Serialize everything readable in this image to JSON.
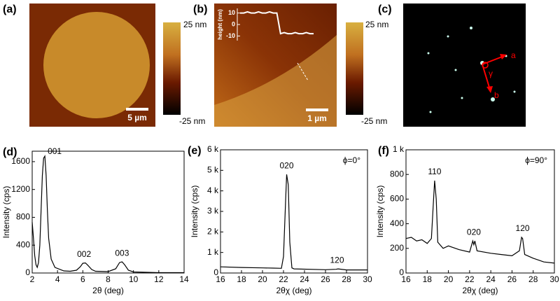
{
  "images": [
    {
      "label": "(a)",
      "scale_bar": "5 µm",
      "colorbar_max": "25 nm",
      "colorbar_min": "-25 nm"
    },
    {
      "label": "(b)",
      "scale_bar": "1 µm",
      "colorbar_max": "25 nm",
      "colorbar_min": "-25 nm"
    },
    {
      "label": "(c)",
      "axis_a": "a",
      "axis_b": "b",
      "angle": "γ"
    }
  ],
  "chart_data": [
    {
      "type": "line",
      "label": "(d)",
      "xlabel": "2θ (deg)",
      "ylabel": "Intensity (cps)",
      "color": "#000",
      "xlim": [
        2,
        14
      ],
      "xticks": [
        2,
        4,
        6,
        8,
        10,
        12,
        14
      ],
      "ylim": [
        0,
        1750
      ],
      "yticks": [
        0,
        400,
        800,
        1200,
        1600
      ],
      "x": [
        2.0,
        2.1,
        2.2,
        2.3,
        2.4,
        2.5,
        2.6,
        2.7,
        2.8,
        2.9,
        3.0,
        3.1,
        3.2,
        3.3,
        3.5,
        3.8,
        4.5,
        5.0,
        5.5,
        5.8,
        6.0,
        6.2,
        6.4,
        6.7,
        7.0,
        8.0,
        8.6,
        8.9,
        9.1,
        9.3,
        9.6,
        10,
        11,
        12,
        13,
        14
      ],
      "values": [
        730,
        500,
        250,
        120,
        80,
        150,
        400,
        900,
        1400,
        1650,
        1680,
        1400,
        900,
        500,
        200,
        80,
        30,
        25,
        40,
        90,
        140,
        145,
        110,
        50,
        25,
        20,
        60,
        150,
        160,
        120,
        40,
        15,
        10,
        5,
        5,
        5
      ],
      "peak_labels": [
        {
          "text": "001",
          "x": 3.0
        },
        {
          "text": "002",
          "x": 6.1
        },
        {
          "text": "003",
          "x": 9.1
        }
      ]
    },
    {
      "type": "line",
      "label": "(e)",
      "xlabel": "2θχ (deg)",
      "ylabel": "Intensity (cps)",
      "color": "#000",
      "note": "ϕ=0°",
      "xlim": [
        16,
        30
      ],
      "xticks": [
        16,
        18,
        20,
        22,
        24,
        26,
        28,
        30
      ],
      "ylim": [
        0,
        6000
      ],
      "yticks": [
        0,
        {
          "value": 1000,
          "label": "1 k"
        },
        {
          "value": 2000,
          "label": "2 k"
        },
        {
          "value": 3000,
          "label": "3 k"
        },
        {
          "value": 4000,
          "label": "4 k"
        },
        {
          "value": 5000,
          "label": "5 k"
        },
        {
          "value": 6000,
          "label": "6 k"
        }
      ],
      "x": [
        16,
        18,
        20,
        21,
        21.8,
        22.0,
        22.2,
        22.3,
        22.45,
        22.6,
        22.8,
        23,
        26,
        27,
        27.2,
        28,
        30
      ],
      "values": [
        300,
        270,
        250,
        240,
        230,
        800,
        3500,
        4800,
        4300,
        1500,
        250,
        200,
        160,
        180,
        200,
        150,
        150
      ],
      "peak_labels": [
        {
          "text": "020",
          "x": 22.3
        },
        {
          "text": "120",
          "x": 27.1
        }
      ]
    },
    {
      "type": "line",
      "label": "(f)",
      "xlabel": "2θχ (deg)",
      "ylabel": "Intensity (cps)",
      "color": "#000",
      "note": "ϕ=90°",
      "xlim": [
        16,
        30
      ],
      "xticks": [
        16,
        18,
        20,
        22,
        24,
        26,
        28,
        30
      ],
      "ylim": [
        0,
        1000
      ],
      "yticks": [
        0,
        200,
        400,
        600,
        800,
        {
          "value": 1000,
          "label": "1 k"
        }
      ],
      "x": [
        16,
        16.5,
        17,
        17.5,
        18,
        18.4,
        18.6,
        18.7,
        18.85,
        19,
        19.5,
        20,
        21,
        22,
        22.3,
        22.4,
        22.5,
        22.7,
        24,
        25,
        26,
        26.7,
        26.9,
        27.0,
        27.2,
        28,
        29,
        30
      ],
      "values": [
        280,
        290,
        260,
        270,
        240,
        280,
        600,
        750,
        600,
        250,
        200,
        220,
        190,
        170,
        260,
        230,
        260,
        180,
        160,
        150,
        140,
        180,
        290,
        280,
        150,
        120,
        90,
        80
      ],
      "peak_labels": [
        {
          "text": "110",
          "x": 18.7
        },
        {
          "text": "020",
          "x": 22.4
        },
        {
          "text": "120",
          "x": 27.0
        }
      ]
    },
    {
      "type": "line",
      "ylabel": "height (nm)",
      "color": "#fff",
      "ylim": [
        -14,
        14
      ],
      "yticks": [
        10,
        0,
        -10
      ],
      "values": [
        10,
        10,
        11,
        10,
        10,
        11,
        10,
        10,
        11,
        10,
        10,
        -8,
        -7,
        -8,
        -8,
        -7,
        -8,
        -8,
        -7,
        -8,
        -8
      ]
    }
  ]
}
